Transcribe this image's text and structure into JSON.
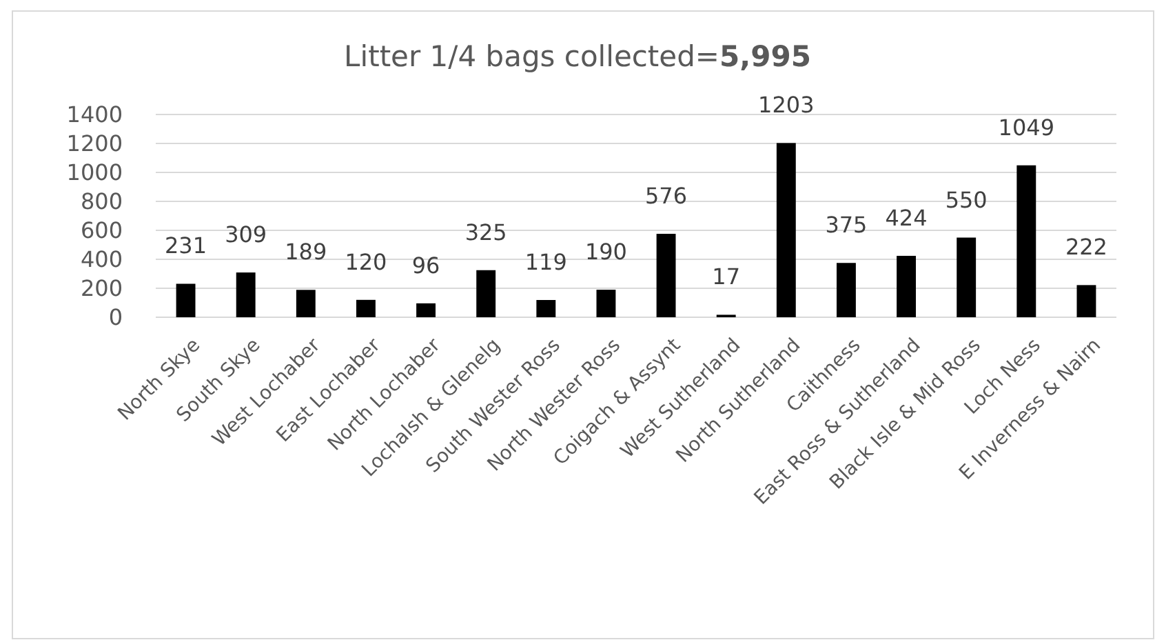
{
  "chart_data": {
    "type": "bar",
    "title": "Litter 1/4 bags collected=5,995",
    "categories": [
      "North Skye",
      "South Skye",
      "West Lochaber",
      "East Lochaber",
      "North Lochaber",
      "Lochalsh & Glenelg",
      "South Wester Ross",
      "North Wester Ross",
      "Coigach & Assynt",
      "West Sutherland",
      "North Sutherland",
      "Caithness",
      "East Ross & Sutherland",
      "Black Isle & Mid Ross",
      "Loch Ness",
      "E Inverness & Nairn"
    ],
    "values": [
      231,
      309,
      189,
      120,
      96,
      325,
      119,
      190,
      576,
      17,
      1203,
      375,
      424,
      550,
      1049,
      222
    ],
    "color": "#000000",
    "ylim": [
      0,
      1400
    ],
    "yticks": [
      0,
      200,
      400,
      600,
      800,
      1000,
      1200,
      1400
    ],
    "grid": "y",
    "data_labels": true
  }
}
